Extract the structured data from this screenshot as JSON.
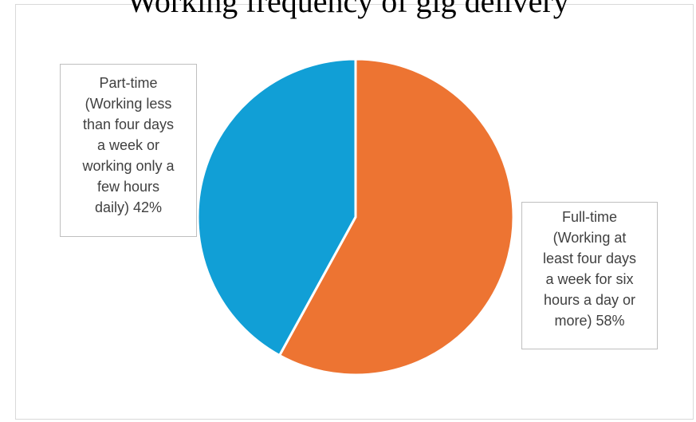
{
  "chart_data": {
    "type": "pie",
    "title": "Working frequency of gig delivery",
    "slices": [
      {
        "category": "Full-time",
        "value": 58,
        "label_lines": [
          "Full-time",
          "(Working at",
          "least four days",
          "a week for six",
          "hours a day or",
          "more) 58%"
        ],
        "color": "#ED7432"
      },
      {
        "category": "Part-time",
        "value": 42,
        "label_lines": [
          "Part-time",
          "(Working less",
          "than four days",
          "a week or",
          "working only a",
          "few hours",
          "daily)  42%"
        ],
        "color": "#119FD6"
      }
    ]
  }
}
